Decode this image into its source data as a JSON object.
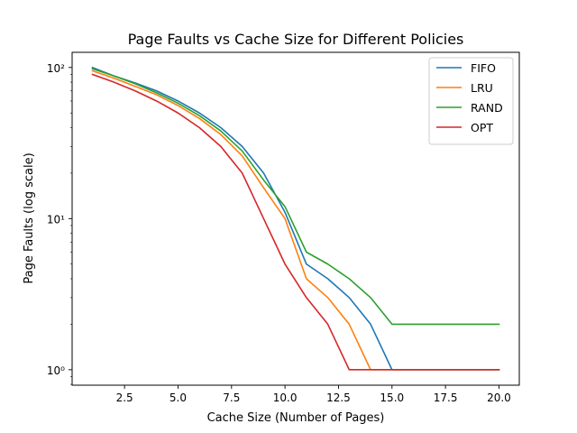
{
  "chart_data": {
    "type": "line",
    "title": "Page Faults vs Cache Size for Different Policies",
    "xlabel": "Cache Size (Number of Pages)",
    "ylabel": "Page Faults (log scale)",
    "xlim": [
      0.05,
      20.95
    ],
    "ylim": [
      0.79,
      126
    ],
    "yscale": "log",
    "x_ticks": [
      2.5,
      5.0,
      7.5,
      10.0,
      12.5,
      15.0,
      17.5,
      20.0
    ],
    "x_tick_labels": [
      "2.5",
      "5.0",
      "7.5",
      "10.0",
      "12.5",
      "15.0",
      "17.5",
      "20.0"
    ],
    "y_ticks": [
      1,
      10,
      100
    ],
    "y_tick_labels": [
      "10⁰",
      "10¹",
      "10²"
    ],
    "grid": false,
    "legend_position": "top-right",
    "x": [
      1,
      2,
      3,
      4,
      5,
      6,
      7,
      8,
      9,
      10,
      11,
      12,
      13,
      14,
      15,
      16,
      17,
      18,
      19,
      20
    ],
    "series": [
      {
        "name": "FIFO",
        "color": "#1f77b4",
        "values": [
          100,
          88,
          79,
          70,
          60,
          50,
          40,
          30,
          20,
          11,
          5,
          4,
          3,
          2,
          1,
          1,
          1,
          1,
          1,
          1
        ]
      },
      {
        "name": "LRU",
        "color": "#ff7f0e",
        "values": [
          95,
          85,
          75,
          66,
          56,
          46,
          36,
          26,
          16,
          10,
          4,
          3,
          2,
          1,
          1,
          1,
          1,
          1,
          1,
          1
        ]
      },
      {
        "name": "RAND",
        "color": "#2ca02c",
        "values": [
          98,
          88,
          78,
          68,
          58,
          48,
          38,
          28,
          18,
          12,
          6,
          5,
          4,
          3,
          2,
          2,
          2,
          2,
          2,
          2
        ]
      },
      {
        "name": "OPT",
        "color": "#d62728",
        "values": [
          90,
          80,
          70,
          60,
          50,
          40,
          30,
          20,
          10,
          5,
          3,
          2,
          1,
          1,
          1,
          1,
          1,
          1,
          1,
          1
        ]
      }
    ]
  }
}
